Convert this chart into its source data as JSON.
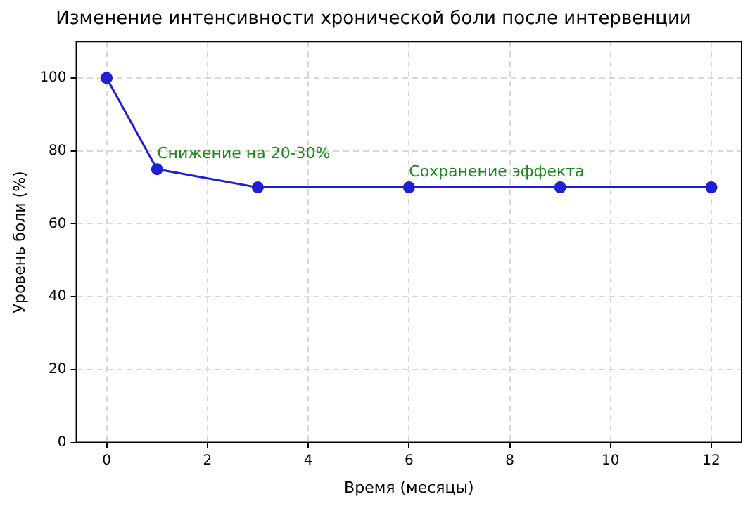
{
  "chart_data": {
    "type": "line",
    "title": "Изменение интенсивности хронической боли после интервенции",
    "xlabel": "Время (месяцы)",
    "ylabel": "Уровень боли (%)",
    "x": [
      0,
      1,
      3,
      6,
      9,
      12
    ],
    "series": [
      {
        "color": "#1f1fd6",
        "values": [
          100,
          75,
          70,
          70,
          70,
          70
        ]
      }
    ],
    "xlim": [
      -0.6,
      12.6
    ],
    "xticks": [
      0,
      2,
      4,
      6,
      8,
      10,
      12
    ],
    "ylim": [
      0,
      110
    ],
    "yticks": [
      0,
      20,
      40,
      60,
      80,
      100
    ],
    "grid": true,
    "legend": false,
    "marker": "circle",
    "line_style": "solid",
    "annotations": [
      {
        "text": "Снижение на 20-30%",
        "x": 1,
        "y": 75
      },
      {
        "text": "Сохранение эффекта",
        "x": 6,
        "y": 70
      }
    ]
  }
}
